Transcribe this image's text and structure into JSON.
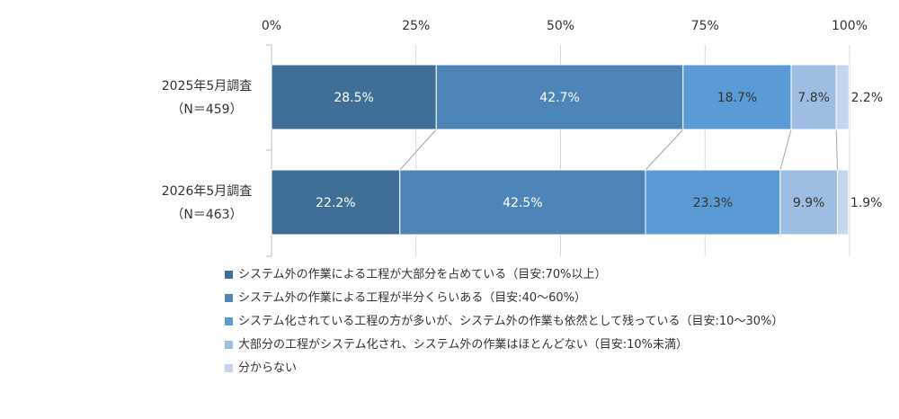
{
  "chart_data": {
    "type": "bar",
    "orientation": "horizontal",
    "stacked": "percent",
    "title": "",
    "xlabel": "",
    "ylabel": "",
    "xlim": [
      0,
      100
    ],
    "x_ticks": [
      "0%",
      "25%",
      "50%",
      "75%",
      "100%"
    ],
    "x_tick_values": [
      0,
      25,
      50,
      75,
      100
    ],
    "grid": true,
    "legend_position": "bottom",
    "categories": [
      {
        "line1": "2025年5月調査",
        "line2": "（N＝459）"
      },
      {
        "line1": "2026年5月調査",
        "line2": "（N＝463）"
      }
    ],
    "series": [
      {
        "name": "システム外の作業による工程が大部分を占めている（目安:70%以上）",
        "color": "#3f6f96",
        "values": [
          28.5,
          22.2
        ],
        "labels": [
          "28.5%",
          "22.2%"
        ],
        "label_color": "#ffffff"
      },
      {
        "name": "システム外の作業による工程が半分くらいある（目安:40～60%）",
        "color": "#4d85b8",
        "values": [
          42.7,
          42.5
        ],
        "labels": [
          "42.7%",
          "42.5%"
        ],
        "label_color": "#ffffff"
      },
      {
        "name": "システム化されている工程の方が多いが、システム外の作業も依然として残っている（目安:10～30%）",
        "color": "#5b9bd5",
        "values": [
          18.7,
          23.3
        ],
        "labels": [
          "18.7%",
          "23.3%"
        ],
        "label_color": "#333333"
      },
      {
        "name": "大部分の工程がシステム化され、システム外の作業はほとんどない（目安:10%未満）",
        "color": "#9dbde3",
        "values": [
          7.8,
          9.9
        ],
        "labels": [
          "7.8%",
          "9.9%"
        ],
        "label_color": "#333333"
      },
      {
        "name": "分からない",
        "color": "#c5d6ee",
        "values": [
          2.2,
          1.9
        ],
        "labels": [
          "2.2%",
          "1.9%"
        ],
        "label_color": "#333333"
      }
    ]
  }
}
